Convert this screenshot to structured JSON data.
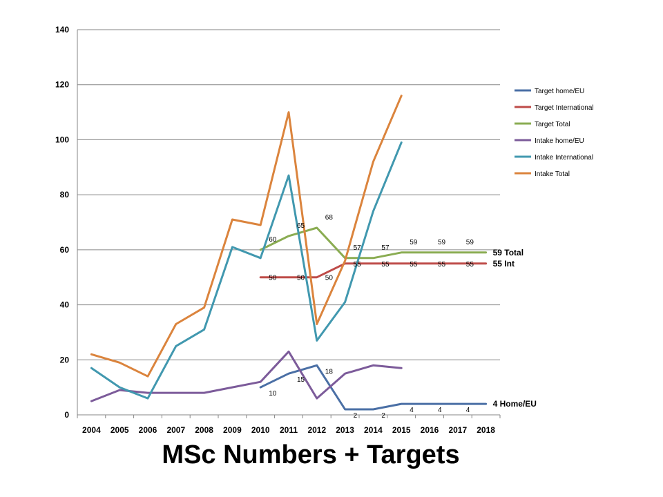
{
  "chart_data": {
    "type": "line",
    "title": "MSc Numbers + Targets",
    "xlabel": "",
    "ylabel": "",
    "categories": [
      "2004",
      "2005",
      "2006",
      "2007",
      "2008",
      "2009",
      "2010",
      "2011",
      "2012",
      "2013",
      "2014",
      "2015",
      "2016",
      "2017",
      "2018"
    ],
    "ylim": [
      0,
      140
    ],
    "yticks": [
      0,
      20,
      40,
      60,
      80,
      100,
      120,
      140
    ],
    "grid": true,
    "legend_position": "right",
    "series": [
      {
        "name": "Target home/EU",
        "color": "#4a6fa5",
        "values": [
          null,
          null,
          null,
          null,
          null,
          null,
          10,
          15,
          18,
          2,
          2,
          4,
          4,
          4,
          4
        ],
        "labels": [
          null,
          null,
          null,
          null,
          null,
          null,
          "10",
          "15",
          "18",
          "2",
          "2",
          "4",
          "4",
          "4",
          null
        ]
      },
      {
        "name": "Target International",
        "color": "#be4b48",
        "values": [
          null,
          null,
          null,
          null,
          null,
          null,
          50,
          50,
          50,
          55,
          55,
          55,
          55,
          55,
          55
        ],
        "labels": [
          null,
          null,
          null,
          null,
          null,
          null,
          "50",
          "50",
          "50",
          "55",
          "55",
          "55",
          "55",
          "55",
          null
        ]
      },
      {
        "name": "Target Total",
        "color": "#8aac52",
        "values": [
          null,
          null,
          null,
          null,
          null,
          null,
          60,
          65,
          68,
          57,
          57,
          59,
          59,
          59,
          59
        ],
        "labels": [
          null,
          null,
          null,
          null,
          null,
          null,
          "60",
          "65",
          "68",
          "57",
          "57",
          "59",
          "59",
          "59",
          null
        ]
      },
      {
        "name": "Intake home/EU",
        "color": "#7c5b9a",
        "values": [
          5,
          9,
          8,
          8,
          8,
          10,
          12,
          23,
          6,
          15,
          18,
          17,
          null,
          null,
          null
        ],
        "labels": []
      },
      {
        "name": "Intake International",
        "color": "#4198af",
        "values": [
          17,
          10,
          6,
          25,
          31,
          61,
          57,
          87,
          27,
          41,
          74,
          99,
          null,
          null,
          null
        ],
        "labels": []
      },
      {
        "name": "Intake Total",
        "color": "#db843d",
        "values": [
          22,
          19,
          14,
          33,
          39,
          71,
          69,
          110,
          33,
          56,
          92,
          116,
          null,
          null,
          null
        ],
        "labels": []
      }
    ],
    "end_labels": [
      {
        "series": "Target Total",
        "text": "59 Total"
      },
      {
        "series": "Target International",
        "text": "55 Int"
      },
      {
        "series": "Target home/EU",
        "text": "4 Home/EU"
      }
    ]
  }
}
